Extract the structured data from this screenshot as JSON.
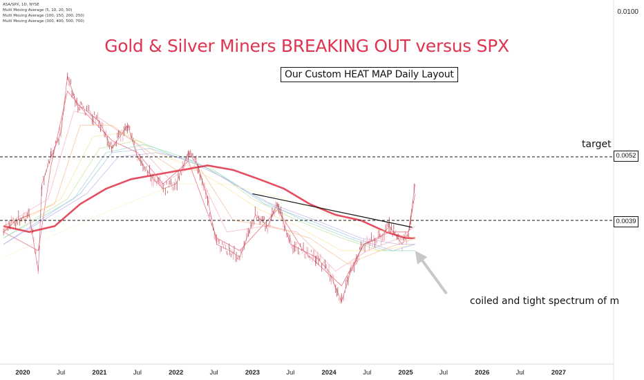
{
  "legend": {
    "symbol": "ASA/SPX, 1D, NYSE",
    "ma1": "Multi Moving Average (5, 10, 20, 50)",
    "ma2": "Multi Moving Average (100, 150, 200, 250)",
    "ma3": "Multi Moving Average (300, 400, 500, 700)"
  },
  "chart_data": {
    "type": "line",
    "title": "Gold & Silver Miners BREAKING OUT versus SPX",
    "subtitle": "Our Custom HEAT MAP Daily Layout",
    "y_scale_label": "0.0100",
    "price_levels": [
      {
        "label": "0.0052",
        "value": 0.0052,
        "annotation": "target"
      },
      {
        "label": "0.0039",
        "value": 0.0039,
        "annotation": ""
      }
    ],
    "annotations": [
      "target",
      "coiled and tight spectrum of m"
    ],
    "x_ticks": [
      {
        "label": "2020",
        "bold": true
      },
      {
        "label": "Jul",
        "bold": false
      },
      {
        "label": "2021",
        "bold": true
      },
      {
        "label": "Jul",
        "bold": false
      },
      {
        "label": "2022",
        "bold": true
      },
      {
        "label": "Jul",
        "bold": false
      },
      {
        "label": "2023",
        "bold": true
      },
      {
        "label": "Jul",
        "bold": false
      },
      {
        "label": "2024",
        "bold": true
      },
      {
        "label": "Jul",
        "bold": false
      },
      {
        "label": "2025",
        "bold": true
      },
      {
        "label": "Jul",
        "bold": false
      },
      {
        "label": "2026",
        "bold": true
      },
      {
        "label": "Jul",
        "bold": false
      },
      {
        "label": "2027",
        "bold": true
      }
    ],
    "price_series": [
      [
        "2019-10-01",
        0.0037
      ],
      [
        "2019-12-01",
        0.0039
      ],
      [
        "2020-02-01",
        0.004
      ],
      [
        "2020-03-15",
        0.0031
      ],
      [
        "2020-04-01",
        0.0046
      ],
      [
        "2020-05-15",
        0.0052
      ],
      [
        "2020-07-01",
        0.0058
      ],
      [
        "2020-08-01",
        0.0075
      ],
      [
        "2020-09-15",
        0.0066
      ],
      [
        "2020-11-01",
        0.0064
      ],
      [
        "2021-01-01",
        0.0061
      ],
      [
        "2021-03-01",
        0.0054
      ],
      [
        "2021-05-15",
        0.006
      ],
      [
        "2021-07-01",
        0.0052
      ],
      [
        "2021-09-15",
        0.0047
      ],
      [
        "2021-11-01",
        0.0045
      ],
      [
        "2022-01-01",
        0.0046
      ],
      [
        "2022-03-01",
        0.0053
      ],
      [
        "2022-04-15",
        0.005
      ],
      [
        "2022-06-01",
        0.0043
      ],
      [
        "2022-07-15",
        0.0035
      ],
      [
        "2022-09-15",
        0.0034
      ],
      [
        "2022-11-01",
        0.0033
      ],
      [
        "2023-01-15",
        0.004
      ],
      [
        "2023-03-15",
        0.0038
      ],
      [
        "2023-05-01",
        0.0042
      ],
      [
        "2023-07-01",
        0.0035
      ],
      [
        "2023-09-01",
        0.0034
      ],
      [
        "2023-11-01",
        0.0033
      ],
      [
        "2024-01-01",
        0.0031
      ],
      [
        "2024-03-01",
        0.0027
      ],
      [
        "2024-04-15",
        0.0031
      ],
      [
        "2024-06-15",
        0.0035
      ],
      [
        "2024-09-01",
        0.0036
      ],
      [
        "2024-10-15",
        0.0038
      ],
      [
        "2024-12-15",
        0.0035
      ],
      [
        "2025-01-15",
        0.0037
      ],
      [
        "2025-02-15",
        0.0046
      ]
    ],
    "ma_ribbons": [
      {
        "name": "MA 5",
        "color": "#e2445c",
        "points": [
          [
            "2019-10-01",
            0.0037
          ],
          [
            "2020-03-15",
            0.0034
          ],
          [
            "2020-05-15",
            0.005
          ],
          [
            "2020-08-01",
            0.007
          ],
          [
            "2020-11-01",
            0.0063
          ],
          [
            "2021-03-01",
            0.0056
          ],
          [
            "2021-07-01",
            0.0053
          ],
          [
            "2021-11-01",
            0.0046
          ],
          [
            "2022-03-01",
            0.0051
          ],
          [
            "2022-07-15",
            0.0036
          ],
          [
            "2022-11-01",
            0.0034
          ],
          [
            "2023-05-01",
            0.0041
          ],
          [
            "2023-09-01",
            0.0034
          ],
          [
            "2024-03-01",
            0.0029
          ],
          [
            "2024-06-15",
            0.0035
          ],
          [
            "2024-10-15",
            0.0037
          ],
          [
            "2025-01-15",
            0.0037
          ],
          [
            "2025-02-15",
            0.0044
          ]
        ]
      },
      {
        "name": "MA 10",
        "color": "#f2a0ad",
        "points": [
          [
            "2019-10-01",
            0.0038
          ],
          [
            "2020-05-01",
            0.0043
          ],
          [
            "2020-09-01",
            0.0064
          ],
          [
            "2021-01-01",
            0.0062
          ],
          [
            "2021-07-01",
            0.0055
          ],
          [
            "2021-12-01",
            0.0047
          ],
          [
            "2022-04-01",
            0.005
          ],
          [
            "2022-09-01",
            0.0037
          ],
          [
            "2023-03-01",
            0.0038
          ],
          [
            "2023-08-01",
            0.0037
          ],
          [
            "2024-02-01",
            0.0031
          ],
          [
            "2024-07-01",
            0.0034
          ],
          [
            "2024-12-01",
            0.0036
          ],
          [
            "2025-02-15",
            0.0038
          ]
        ]
      },
      {
        "name": "MA 20",
        "color": "#f4b183",
        "points": [
          [
            "2019-10-01",
            0.0038
          ],
          [
            "2020-06-01",
            0.0042
          ],
          [
            "2020-10-01",
            0.006
          ],
          [
            "2021-03-01",
            0.006
          ],
          [
            "2021-08-01",
            0.0054
          ],
          [
            "2022-01-01",
            0.0049
          ],
          [
            "2022-05-01",
            0.0049
          ],
          [
            "2022-10-01",
            0.0039
          ],
          [
            "2023-04-01",
            0.0038
          ],
          [
            "2023-10-01",
            0.0036
          ],
          [
            "2024-04-01",
            0.0032
          ],
          [
            "2024-09-01",
            0.0034
          ],
          [
            "2025-02-15",
            0.0036
          ]
        ]
      },
      {
        "name": "MA 50",
        "color": "#f7e08c",
        "points": [
          [
            "2019-10-01",
            0.0037
          ],
          [
            "2020-07-01",
            0.0043
          ],
          [
            "2020-12-01",
            0.0057
          ],
          [
            "2021-05-01",
            0.0058
          ],
          [
            "2021-10-01",
            0.0053
          ],
          [
            "2022-03-01",
            0.005
          ],
          [
            "2022-08-01",
            0.0046
          ],
          [
            "2023-02-01",
            0.0041
          ],
          [
            "2023-08-01",
            0.0038
          ],
          [
            "2024-03-01",
            0.0034
          ],
          [
            "2024-09-01",
            0.0034
          ],
          [
            "2025-02-15",
            0.0035
          ]
        ]
      },
      {
        "name": "MA 100",
        "color": "#b7dd8f",
        "points": [
          [
            "2019-10-01",
            0.0036
          ],
          [
            "2020-08-01",
            0.0043
          ],
          [
            "2021-01-01",
            0.0054
          ],
          [
            "2021-07-01",
            0.0056
          ],
          [
            "2022-01-01",
            0.0052
          ],
          [
            "2022-07-01",
            0.0049
          ],
          [
            "2023-01-01",
            0.0043
          ],
          [
            "2023-08-01",
            0.0039
          ],
          [
            "2024-03-01",
            0.0036
          ],
          [
            "2024-09-01",
            0.0034
          ],
          [
            "2025-02-15",
            0.0034
          ]
        ]
      },
      {
        "name": "MA 150",
        "color": "#8fd3c6",
        "points": [
          [
            "2019-10-01",
            0.0036
          ],
          [
            "2020-09-01",
            0.0043
          ],
          [
            "2021-02-01",
            0.0053
          ],
          [
            "2021-08-01",
            0.0055
          ],
          [
            "2022-02-01",
            0.0052
          ],
          [
            "2022-08-01",
            0.0048
          ],
          [
            "2023-02-01",
            0.0043
          ],
          [
            "2023-09-01",
            0.0039
          ],
          [
            "2024-04-01",
            0.0036
          ],
          [
            "2024-10-01",
            0.0034
          ],
          [
            "2025-02-15",
            0.0034
          ]
        ]
      },
      {
        "name": "MA 200",
        "color": "#8fb8e6",
        "points": [
          [
            "2019-10-01",
            0.0035
          ],
          [
            "2020-10-01",
            0.0044
          ],
          [
            "2021-03-01",
            0.0053
          ],
          [
            "2021-09-01",
            0.0054
          ],
          [
            "2022-03-01",
            0.0051
          ],
          [
            "2022-09-01",
            0.0047
          ],
          [
            "2023-03-01",
            0.0042
          ],
          [
            "2023-10-01",
            0.0039
          ],
          [
            "2024-05-01",
            0.0036
          ],
          [
            "2024-11-01",
            0.0034
          ],
          [
            "2025-02-15",
            0.0035
          ]
        ]
      },
      {
        "name": "MA 250",
        "color": "#b3a6e6",
        "points": [
          [
            "2019-10-01",
            0.0035
          ],
          [
            "2020-11-01",
            0.0044
          ],
          [
            "2021-04-01",
            0.0052
          ],
          [
            "2021-10-01",
            0.0053
          ],
          [
            "2022-04-01",
            0.0051
          ],
          [
            "2022-10-01",
            0.0046
          ],
          [
            "2023-04-01",
            0.0042
          ],
          [
            "2023-11-01",
            0.0039
          ],
          [
            "2024-06-01",
            0.0036
          ],
          [
            "2024-12-01",
            0.0035
          ],
          [
            "2025-02-15",
            0.0035
          ]
        ]
      },
      {
        "name": "MA 300",
        "color": "#e23b4f",
        "bold": true,
        "points": [
          [
            "2019-10-01",
            0.0038
          ],
          [
            "2020-02-01",
            0.0037
          ],
          [
            "2020-06-01",
            0.0038
          ],
          [
            "2020-10-01",
            0.0042
          ],
          [
            "2021-02-01",
            0.0045
          ],
          [
            "2021-06-01",
            0.0047
          ],
          [
            "2021-10-01",
            0.0048
          ],
          [
            "2022-02-01",
            0.0049
          ],
          [
            "2022-06-01",
            0.005
          ],
          [
            "2022-10-01",
            0.0049
          ],
          [
            "2023-02-01",
            0.0047
          ],
          [
            "2023-06-01",
            0.0045
          ],
          [
            "2023-10-01",
            0.0042
          ],
          [
            "2024-02-01",
            0.004
          ],
          [
            "2024-06-01",
            0.0039
          ],
          [
            "2024-10-01",
            0.0037
          ],
          [
            "2025-01-01",
            0.0036
          ],
          [
            "2025-02-15",
            0.0036
          ]
        ]
      },
      {
        "name": "MA 700",
        "color": "#f9efc0",
        "points": [
          [
            "2019-10-01",
            0.0033
          ],
          [
            "2021-01-01",
            0.004
          ],
          [
            "2022-01-01",
            0.0046
          ],
          [
            "2022-09-01",
            0.0046
          ],
          [
            "2023-06-01",
            0.0043
          ],
          [
            "2024-06-01",
            0.0038
          ],
          [
            "2025-02-15",
            0.0036
          ]
        ]
      }
    ],
    "trendline": [
      [
        "2023-01-01",
        0.0044
      ],
      [
        "2025-02-01",
        0.00378
      ]
    ],
    "arrow": {
      "from": [
        "2025-07-15",
        0.0028
      ],
      "to": [
        "2025-02-15",
        0.0034
      ]
    }
  }
}
